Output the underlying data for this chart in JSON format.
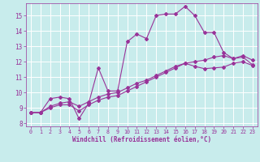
{
  "xlabel": "Windchill (Refroidissement éolien,°C)",
  "bg_color": "#c8ecec",
  "line_color": "#993399",
  "grid_color": "#ffffff",
  "xlim": [
    -0.5,
    23.5
  ],
  "ylim": [
    7.8,
    15.8
  ],
  "yticks": [
    8,
    9,
    10,
    11,
    12,
    13,
    14,
    15
  ],
  "xticks": [
    0,
    1,
    2,
    3,
    4,
    5,
    6,
    7,
    8,
    9,
    10,
    11,
    12,
    13,
    14,
    15,
    16,
    17,
    18,
    19,
    20,
    21,
    22,
    23
  ],
  "series1_x": [
    0,
    1,
    2,
    3,
    4,
    5,
    6,
    7,
    8,
    9,
    10,
    11,
    12,
    13,
    14,
    15,
    16,
    17,
    18,
    19,
    20,
    21,
    22,
    23
  ],
  "series1_y": [
    8.7,
    8.7,
    9.6,
    9.7,
    9.6,
    8.3,
    9.3,
    11.6,
    10.1,
    10.1,
    13.3,
    13.8,
    13.5,
    15.0,
    15.1,
    15.1,
    15.6,
    15.0,
    13.9,
    13.9,
    12.6,
    12.2,
    12.4,
    12.1
  ],
  "series2_x": [
    0,
    1,
    2,
    3,
    4,
    5,
    6,
    7,
    8,
    9,
    10,
    11,
    12,
    13,
    14,
    15,
    16,
    17,
    18,
    19,
    20,
    21,
    22,
    23
  ],
  "series2_y": [
    8.7,
    8.7,
    9.0,
    9.2,
    9.2,
    8.8,
    9.2,
    9.5,
    9.7,
    9.8,
    10.1,
    10.4,
    10.7,
    11.0,
    11.3,
    11.6,
    11.9,
    12.0,
    12.1,
    12.3,
    12.4,
    12.2,
    12.3,
    11.8
  ],
  "series3_x": [
    0,
    1,
    2,
    3,
    4,
    5,
    6,
    7,
    8,
    9,
    10,
    11,
    12,
    13,
    14,
    15,
    16,
    17,
    18,
    19,
    20,
    21,
    22,
    23
  ],
  "series3_y": [
    8.7,
    8.7,
    9.1,
    9.3,
    9.4,
    9.1,
    9.4,
    9.7,
    9.9,
    10.0,
    10.3,
    10.6,
    10.8,
    11.1,
    11.4,
    11.7,
    11.9,
    11.7,
    11.55,
    11.6,
    11.65,
    11.9,
    12.0,
    11.75
  ]
}
